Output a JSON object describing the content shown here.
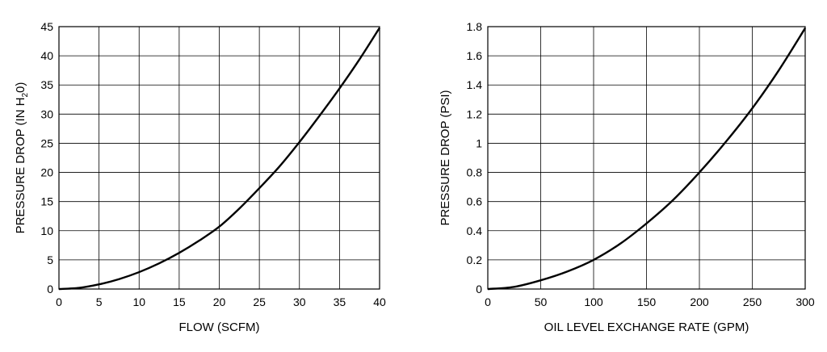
{
  "chart_data": [
    {
      "type": "line",
      "title": "",
      "xlabel": "FLOW (SCFM)",
      "ylabel": "PRESSURE DROP (IN H",
      "ylabel_sub": "2",
      "ylabel_end": "0)",
      "xlim": [
        0,
        40
      ],
      "ylim": [
        0,
        45
      ],
      "xticks": [
        "0",
        "5",
        "10",
        "15",
        "20",
        "25",
        "30",
        "35",
        "40"
      ],
      "yticks": [
        "0",
        "5",
        "10",
        "15",
        "20",
        "25",
        "30",
        "35",
        "40",
        "45"
      ],
      "grid": true,
      "series": [
        {
          "x": [
            0,
            2.5,
            5,
            7.5,
            10,
            12.5,
            15,
            17.5,
            20,
            22.5,
            25,
            27.5,
            30,
            32.5,
            35,
            37.5,
            40
          ],
          "y": [
            0,
            0.2,
            0.8,
            1.7,
            2.9,
            4.4,
            6.2,
            8.3,
            10.7,
            13.8,
            17.3,
            21.0,
            25.2,
            29.7,
            34.4,
            39.4,
            44.8
          ]
        }
      ]
    },
    {
      "type": "line",
      "title": "",
      "xlabel": "OIL LEVEL EXCHANGE RATE (GPM)",
      "ylabel": "PRESSURE DROP (PSI)",
      "xlim": [
        0,
        300
      ],
      "ylim": [
        0,
        1.8
      ],
      "xticks": [
        "0",
        "50",
        "100",
        "150",
        "200",
        "250",
        "300"
      ],
      "yticks": [
        "0",
        "0.2",
        "0.4",
        "0.6",
        "0.8",
        "1",
        "1.2",
        "1.4",
        "1.6",
        "1.8"
      ],
      "grid": true,
      "series": [
        {
          "x": [
            0,
            25,
            50,
            75,
            100,
            125,
            150,
            175,
            200,
            225,
            250,
            275,
            300
          ],
          "y": [
            0,
            0.015,
            0.06,
            0.12,
            0.2,
            0.31,
            0.45,
            0.61,
            0.8,
            1.01,
            1.24,
            1.5,
            1.79
          ]
        }
      ]
    }
  ]
}
